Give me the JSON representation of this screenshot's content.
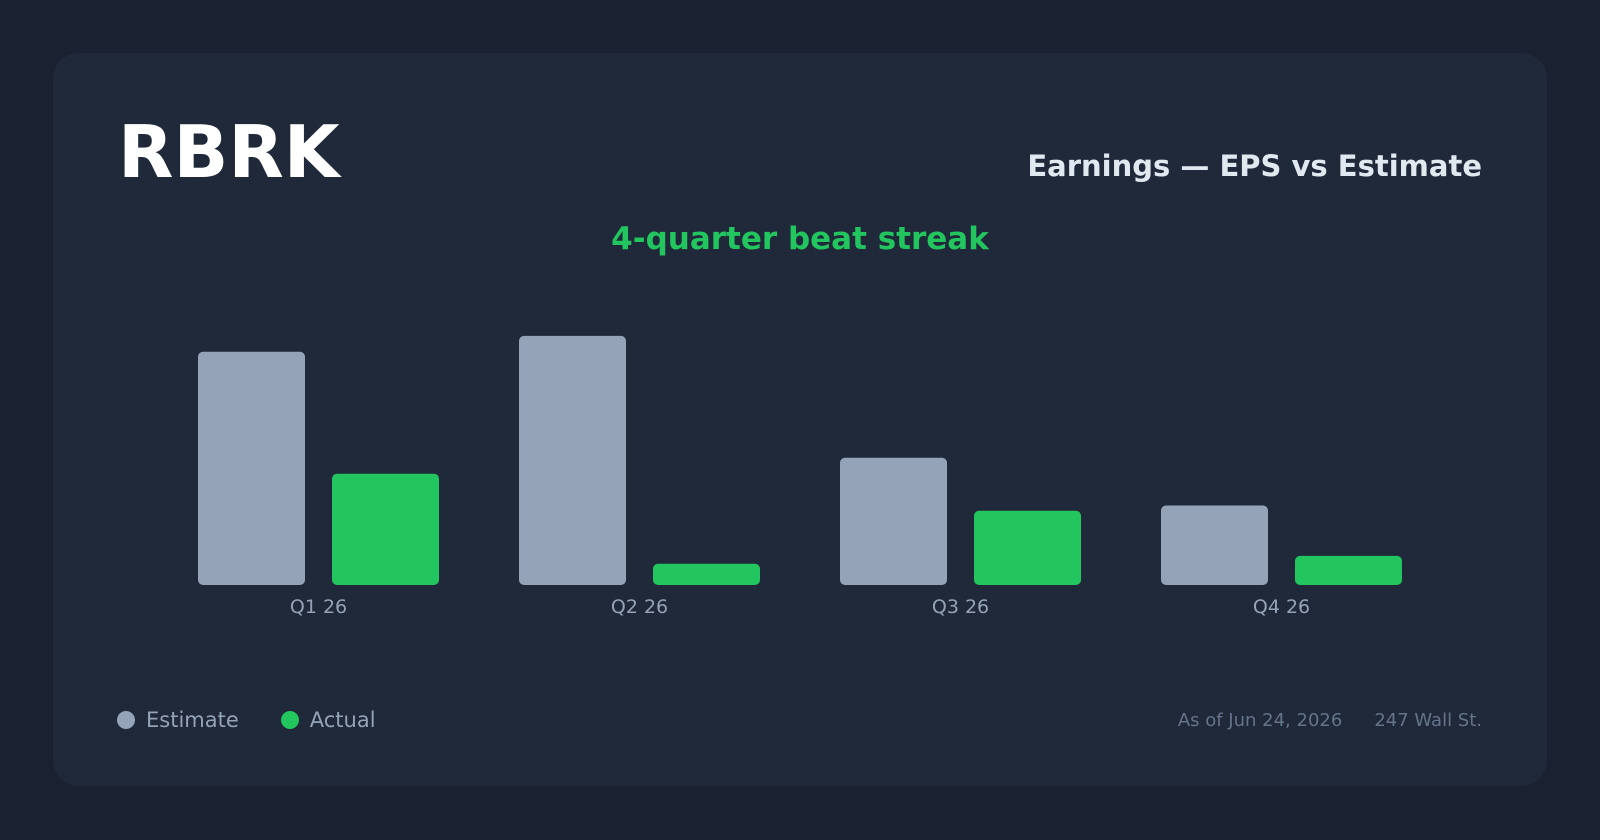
{
  "header": {
    "ticker": "RBRK",
    "title": "Earnings — EPS vs Estimate",
    "subtitle": "4-quarter beat streak"
  },
  "colors": {
    "background": "#1a2231",
    "card": "#1f293a",
    "estimate": "#94a3b8",
    "actual": "#22c55e",
    "accent": "#22c55e"
  },
  "legend": {
    "estimate_label": "Estimate",
    "actual_label": "Actual",
    "position": "bottom-left"
  },
  "footer": {
    "as_of": "As of Jun 24, 2026",
    "source": "247 Wall St."
  },
  "chart_data": {
    "type": "bar",
    "categories": [
      "Q1 26",
      "Q2 26",
      "Q3 26",
      "Q4 26"
    ],
    "series": [
      {
        "name": "Estimate",
        "values": [
          -0.44,
          -0.47,
          -0.24,
          -0.15
        ]
      },
      {
        "name": "Actual",
        "values": [
          -0.21,
          -0.04,
          -0.14,
          -0.055
        ]
      }
    ],
    "title": "Earnings — EPS vs Estimate",
    "subtitle": "4-quarter beat streak",
    "xlabel": "",
    "ylabel": "",
    "ylim": [
      -0.5,
      0
    ],
    "grid": false,
    "legend_position": "bottom-left"
  }
}
